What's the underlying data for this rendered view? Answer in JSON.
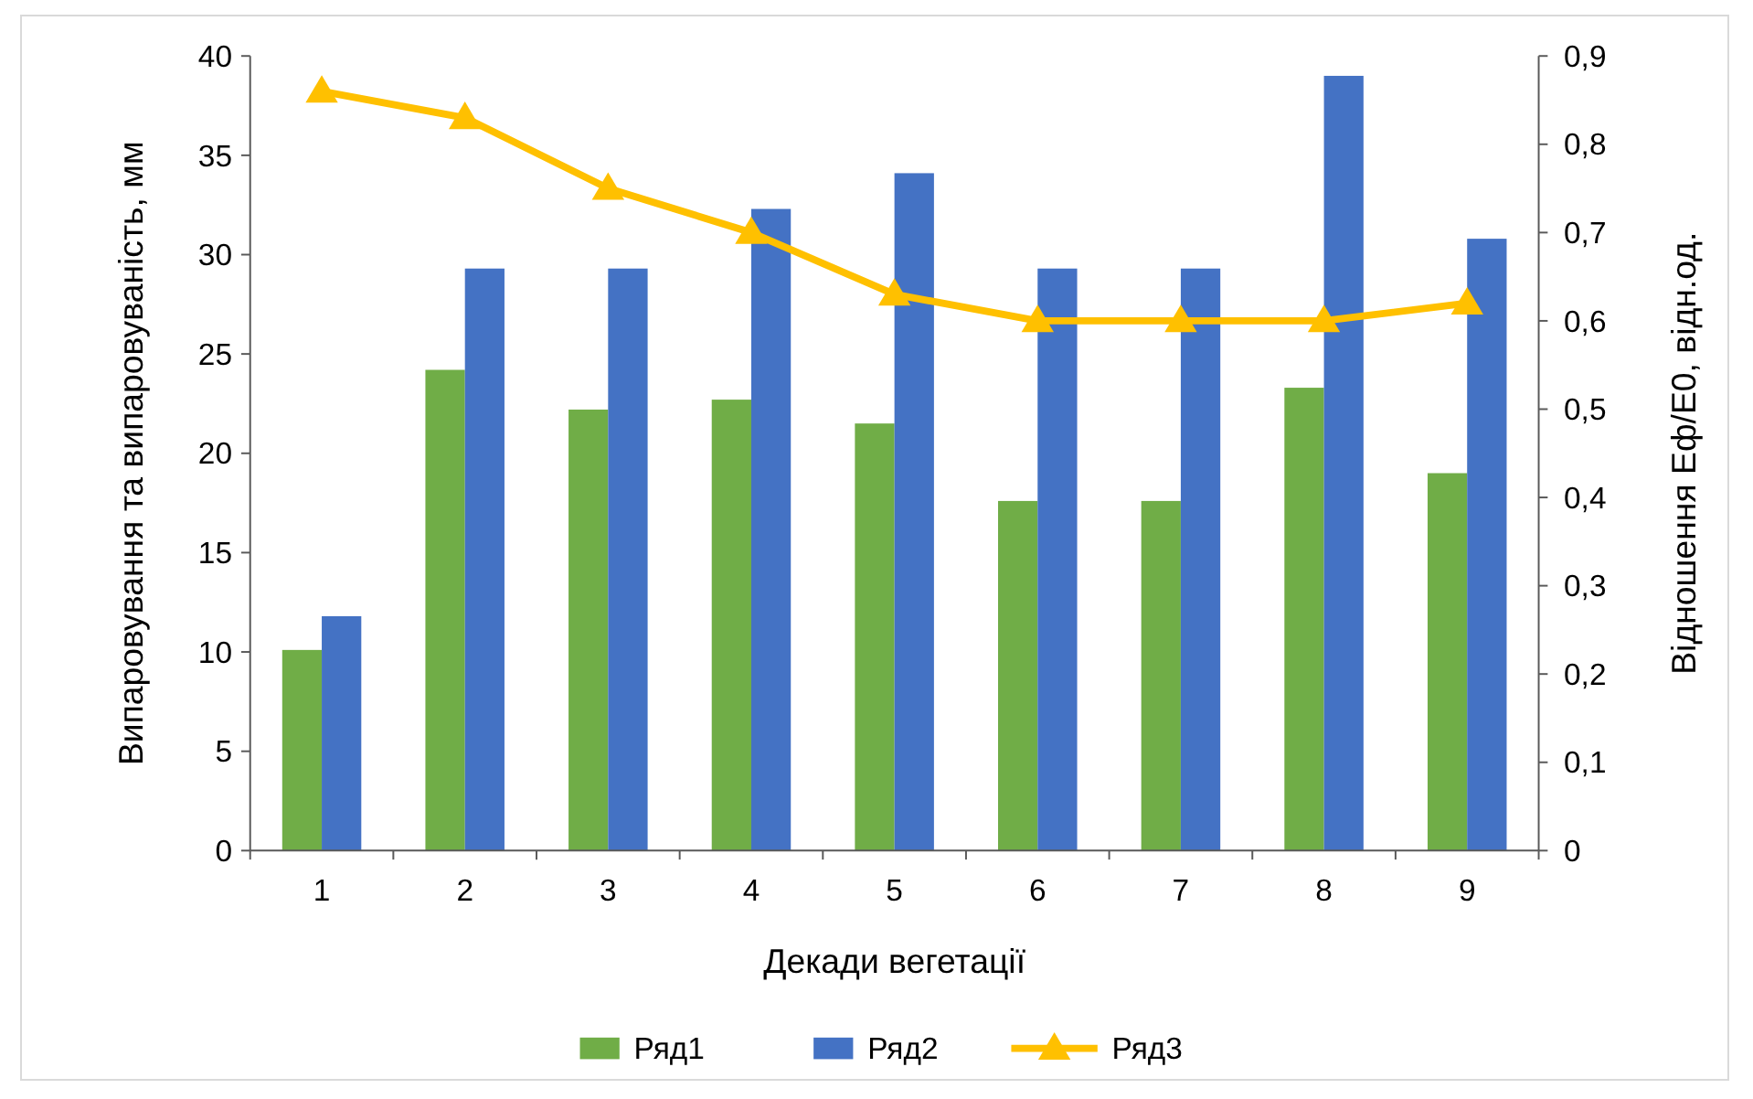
{
  "chart_data": {
    "type": "bar",
    "xlabel": "Декади вегетації",
    "ylabel": "Випаровування та випаровуваність, мм",
    "y2label": "Відношення Еф/Е0, відн.од.",
    "categories": [
      "1",
      "2",
      "3",
      "4",
      "5",
      "6",
      "7",
      "8",
      "9"
    ],
    "series": [
      {
        "name": "Ряд1",
        "color": "#70ad47",
        "values": [
          10.1,
          24.2,
          22.2,
          22.7,
          21.5,
          17.6,
          17.6,
          23.3,
          19.0
        ]
      },
      {
        "name": "Ряд2",
        "color": "#4472c4",
        "values": [
          11.8,
          29.3,
          29.3,
          32.3,
          34.1,
          29.3,
          29.3,
          39.0,
          30.8
        ]
      },
      {
        "name": "Ряд3",
        "color": "#ffc000",
        "type": "line",
        "axis": "y2",
        "marker": "triangle",
        "values": [
          0.86,
          0.83,
          0.75,
          0.7,
          0.63,
          0.6,
          0.6,
          0.6,
          0.62
        ]
      }
    ],
    "ylim": [
      0,
      40
    ],
    "yticks": [
      0,
      5,
      10,
      15,
      20,
      25,
      30,
      35,
      40
    ],
    "y2lim": [
      0,
      0.9
    ],
    "y2ticks": [
      {
        "value": 0,
        "label": "0"
      },
      {
        "value": 0.1,
        "label": "0,1"
      },
      {
        "value": 0.2,
        "label": "0,2"
      },
      {
        "value": 0.3,
        "label": "0,3"
      },
      {
        "value": 0.4,
        "label": "0,4"
      },
      {
        "value": 0.5,
        "label": "0,5"
      },
      {
        "value": 0.6,
        "label": "0,6"
      },
      {
        "value": 0.7,
        "label": "0,7"
      },
      {
        "value": 0.8,
        "label": "0,8"
      },
      {
        "value": 0.9,
        "label": "0,9"
      }
    ],
    "legend": "bottom"
  }
}
